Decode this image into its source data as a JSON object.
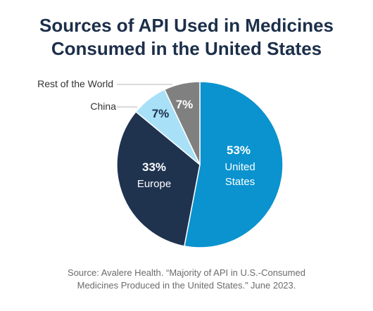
{
  "chart_data": {
    "type": "pie",
    "title": [
      "Sources of API Used in Medicines",
      "Consumed in the United States"
    ],
    "slices": [
      {
        "label": "United States",
        "label_lines": [
          "United",
          "States"
        ],
        "value": 53,
        "display": "53%",
        "color": "#0a93cf",
        "label_color": "#ffffff",
        "label_position": "inside"
      },
      {
        "label": "Europe",
        "label_lines": [
          "Europe"
        ],
        "value": 33,
        "display": "33%",
        "color": "#1f334f",
        "label_color": "#ffffff",
        "label_position": "inside"
      },
      {
        "label": "China",
        "label_lines": [
          "China"
        ],
        "value": 7,
        "display": "7%",
        "color": "#a8e0f8",
        "label_color": "#1c2f4a",
        "label_position": "outside"
      },
      {
        "label": "Rest of the World",
        "label_lines": [
          "Rest of the World"
        ],
        "value": 7,
        "display": "7%",
        "color": "#808080",
        "label_color": "#ffffff",
        "label_position": "outside"
      }
    ],
    "start": "12 o'clock",
    "direction": "clockwise"
  },
  "source": [
    "Source: Avalere Health. “Majority of API in U.S.-Consumed",
    "Medicines Produced in the United States.” June 2023."
  ]
}
